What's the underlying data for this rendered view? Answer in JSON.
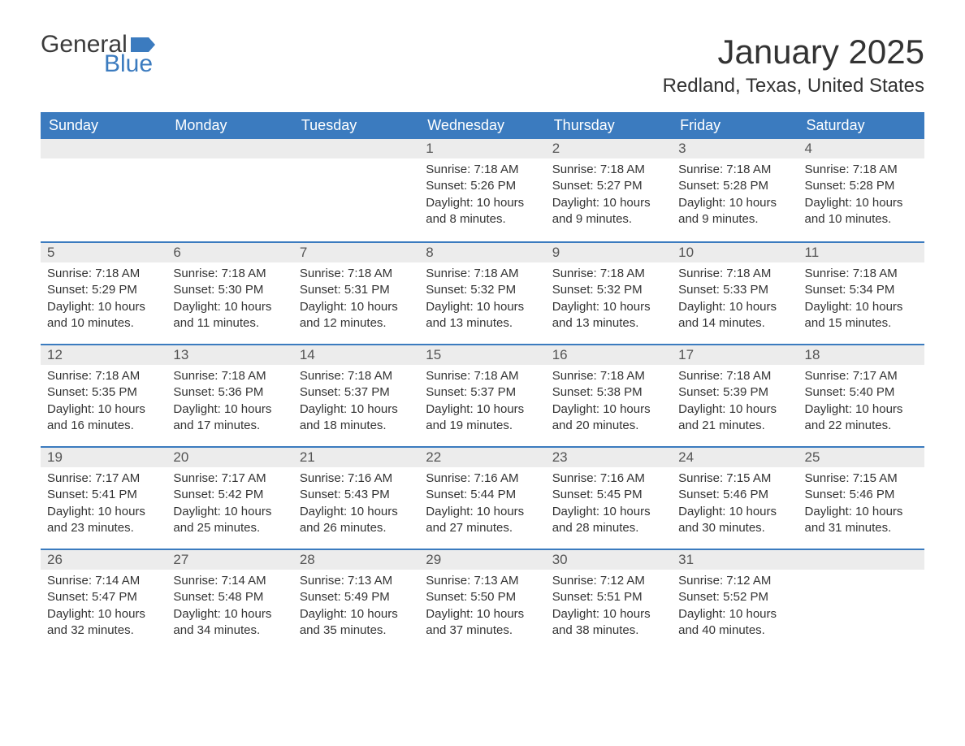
{
  "brand": {
    "word1": "General",
    "word2": "Blue",
    "word1_color": "#3b3b3b",
    "word2_color": "#3b7bbf",
    "flag_color": "#3b7bbf"
  },
  "title": "January 2025",
  "location": "Redland, Texas, United States",
  "colors": {
    "header_bg": "#3b7bbf",
    "header_text": "#ffffff",
    "daynum_bg": "#ececec",
    "daynum_text": "#555555",
    "body_text": "#333333",
    "row_border": "#3b7bbf",
    "page_bg": "#ffffff"
  },
  "weekdays": [
    "Sunday",
    "Monday",
    "Tuesday",
    "Wednesday",
    "Thursday",
    "Friday",
    "Saturday"
  ],
  "weeks": [
    [
      {
        "blank": true
      },
      {
        "blank": true
      },
      {
        "blank": true
      },
      {
        "day": "1",
        "sunrise": "Sunrise: 7:18 AM",
        "sunset": "Sunset: 5:26 PM",
        "daylight1": "Daylight: 10 hours",
        "daylight2": "and 8 minutes."
      },
      {
        "day": "2",
        "sunrise": "Sunrise: 7:18 AM",
        "sunset": "Sunset: 5:27 PM",
        "daylight1": "Daylight: 10 hours",
        "daylight2": "and 9 minutes."
      },
      {
        "day": "3",
        "sunrise": "Sunrise: 7:18 AM",
        "sunset": "Sunset: 5:28 PM",
        "daylight1": "Daylight: 10 hours",
        "daylight2": "and 9 minutes."
      },
      {
        "day": "4",
        "sunrise": "Sunrise: 7:18 AM",
        "sunset": "Sunset: 5:28 PM",
        "daylight1": "Daylight: 10 hours",
        "daylight2": "and 10 minutes."
      }
    ],
    [
      {
        "day": "5",
        "sunrise": "Sunrise: 7:18 AM",
        "sunset": "Sunset: 5:29 PM",
        "daylight1": "Daylight: 10 hours",
        "daylight2": "and 10 minutes."
      },
      {
        "day": "6",
        "sunrise": "Sunrise: 7:18 AM",
        "sunset": "Sunset: 5:30 PM",
        "daylight1": "Daylight: 10 hours",
        "daylight2": "and 11 minutes."
      },
      {
        "day": "7",
        "sunrise": "Sunrise: 7:18 AM",
        "sunset": "Sunset: 5:31 PM",
        "daylight1": "Daylight: 10 hours",
        "daylight2": "and 12 minutes."
      },
      {
        "day": "8",
        "sunrise": "Sunrise: 7:18 AM",
        "sunset": "Sunset: 5:32 PM",
        "daylight1": "Daylight: 10 hours",
        "daylight2": "and 13 minutes."
      },
      {
        "day": "9",
        "sunrise": "Sunrise: 7:18 AM",
        "sunset": "Sunset: 5:32 PM",
        "daylight1": "Daylight: 10 hours",
        "daylight2": "and 13 minutes."
      },
      {
        "day": "10",
        "sunrise": "Sunrise: 7:18 AM",
        "sunset": "Sunset: 5:33 PM",
        "daylight1": "Daylight: 10 hours",
        "daylight2": "and 14 minutes."
      },
      {
        "day": "11",
        "sunrise": "Sunrise: 7:18 AM",
        "sunset": "Sunset: 5:34 PM",
        "daylight1": "Daylight: 10 hours",
        "daylight2": "and 15 minutes."
      }
    ],
    [
      {
        "day": "12",
        "sunrise": "Sunrise: 7:18 AM",
        "sunset": "Sunset: 5:35 PM",
        "daylight1": "Daylight: 10 hours",
        "daylight2": "and 16 minutes."
      },
      {
        "day": "13",
        "sunrise": "Sunrise: 7:18 AM",
        "sunset": "Sunset: 5:36 PM",
        "daylight1": "Daylight: 10 hours",
        "daylight2": "and 17 minutes."
      },
      {
        "day": "14",
        "sunrise": "Sunrise: 7:18 AM",
        "sunset": "Sunset: 5:37 PM",
        "daylight1": "Daylight: 10 hours",
        "daylight2": "and 18 minutes."
      },
      {
        "day": "15",
        "sunrise": "Sunrise: 7:18 AM",
        "sunset": "Sunset: 5:37 PM",
        "daylight1": "Daylight: 10 hours",
        "daylight2": "and 19 minutes."
      },
      {
        "day": "16",
        "sunrise": "Sunrise: 7:18 AM",
        "sunset": "Sunset: 5:38 PM",
        "daylight1": "Daylight: 10 hours",
        "daylight2": "and 20 minutes."
      },
      {
        "day": "17",
        "sunrise": "Sunrise: 7:18 AM",
        "sunset": "Sunset: 5:39 PM",
        "daylight1": "Daylight: 10 hours",
        "daylight2": "and 21 minutes."
      },
      {
        "day": "18",
        "sunrise": "Sunrise: 7:17 AM",
        "sunset": "Sunset: 5:40 PM",
        "daylight1": "Daylight: 10 hours",
        "daylight2": "and 22 minutes."
      }
    ],
    [
      {
        "day": "19",
        "sunrise": "Sunrise: 7:17 AM",
        "sunset": "Sunset: 5:41 PM",
        "daylight1": "Daylight: 10 hours",
        "daylight2": "and 23 minutes."
      },
      {
        "day": "20",
        "sunrise": "Sunrise: 7:17 AM",
        "sunset": "Sunset: 5:42 PM",
        "daylight1": "Daylight: 10 hours",
        "daylight2": "and 25 minutes."
      },
      {
        "day": "21",
        "sunrise": "Sunrise: 7:16 AM",
        "sunset": "Sunset: 5:43 PM",
        "daylight1": "Daylight: 10 hours",
        "daylight2": "and 26 minutes."
      },
      {
        "day": "22",
        "sunrise": "Sunrise: 7:16 AM",
        "sunset": "Sunset: 5:44 PM",
        "daylight1": "Daylight: 10 hours",
        "daylight2": "and 27 minutes."
      },
      {
        "day": "23",
        "sunrise": "Sunrise: 7:16 AM",
        "sunset": "Sunset: 5:45 PM",
        "daylight1": "Daylight: 10 hours",
        "daylight2": "and 28 minutes."
      },
      {
        "day": "24",
        "sunrise": "Sunrise: 7:15 AM",
        "sunset": "Sunset: 5:46 PM",
        "daylight1": "Daylight: 10 hours",
        "daylight2": "and 30 minutes."
      },
      {
        "day": "25",
        "sunrise": "Sunrise: 7:15 AM",
        "sunset": "Sunset: 5:46 PM",
        "daylight1": "Daylight: 10 hours",
        "daylight2": "and 31 minutes."
      }
    ],
    [
      {
        "day": "26",
        "sunrise": "Sunrise: 7:14 AM",
        "sunset": "Sunset: 5:47 PM",
        "daylight1": "Daylight: 10 hours",
        "daylight2": "and 32 minutes."
      },
      {
        "day": "27",
        "sunrise": "Sunrise: 7:14 AM",
        "sunset": "Sunset: 5:48 PM",
        "daylight1": "Daylight: 10 hours",
        "daylight2": "and 34 minutes."
      },
      {
        "day": "28",
        "sunrise": "Sunrise: 7:13 AM",
        "sunset": "Sunset: 5:49 PM",
        "daylight1": "Daylight: 10 hours",
        "daylight2": "and 35 minutes."
      },
      {
        "day": "29",
        "sunrise": "Sunrise: 7:13 AM",
        "sunset": "Sunset: 5:50 PM",
        "daylight1": "Daylight: 10 hours",
        "daylight2": "and 37 minutes."
      },
      {
        "day": "30",
        "sunrise": "Sunrise: 7:12 AM",
        "sunset": "Sunset: 5:51 PM",
        "daylight1": "Daylight: 10 hours",
        "daylight2": "and 38 minutes."
      },
      {
        "day": "31",
        "sunrise": "Sunrise: 7:12 AM",
        "sunset": "Sunset: 5:52 PM",
        "daylight1": "Daylight: 10 hours",
        "daylight2": "and 40 minutes."
      },
      {
        "blank": true
      }
    ]
  ]
}
